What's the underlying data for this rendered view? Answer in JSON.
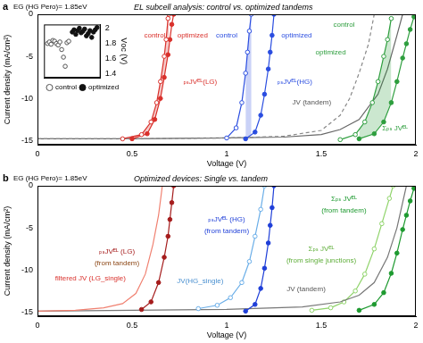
{
  "chart_data": [
    {
      "label": "a",
      "type": "line",
      "subtitle": "EG (HG Pero)= 1.85eV",
      "title": "EL subcell analysis: control vs. optimized tandems",
      "x_label": "Voltage (V)",
      "y_label": "Current density (mA/cm²)",
      "xlim": [
        0,
        2
      ],
      "xticks": [
        0,
        0.5,
        1,
        1.5,
        2
      ],
      "ylim": [
        -15.5,
        0
      ],
      "yticks": [
        -15,
        -10,
        -5,
        0
      ],
      "grid": false,
      "series": [
        {
          "color": "#d9302b",
          "marker": "open_circle",
          "line_style": "solid",
          "x": [
            0.45,
            0.55,
            0.6,
            0.63,
            0.65,
            0.67,
            0.68,
            0.69,
            0.695
          ],
          "values": [
            -14.8,
            -14.3,
            -12.8,
            -10.5,
            -8,
            -5,
            -3,
            -0.5,
            0
          ]
        },
        {
          "color": "#d9302b",
          "marker": "circle",
          "line_style": "solid",
          "x": [
            0.5,
            0.58,
            0.62,
            0.65,
            0.67,
            0.69,
            0.7,
            0.71,
            0.72
          ],
          "values": [
            -14.8,
            -14.2,
            -12.5,
            -10,
            -7.5,
            -4.8,
            -3,
            -1.2,
            0
          ]
        },
        {
          "color": "#2a4de0",
          "marker": "open_circle",
          "line_style": "solid",
          "x": [
            1.0,
            1.05,
            1.08,
            1.1,
            1.11,
            1.12,
            1.13
          ],
          "values": [
            -14.7,
            -13.5,
            -10.5,
            -7,
            -4.5,
            -2,
            0
          ]
        },
        {
          "color": "#2a4de0",
          "marker": "circle",
          "line_style": "solid",
          "x": [
            1.1,
            1.15,
            1.18,
            1.2,
            1.22,
            1.23,
            1.24,
            1.25
          ],
          "values": [
            -14.8,
            -14,
            -12,
            -9.5,
            -6.5,
            -4.5,
            -2.5,
            0
          ]
        },
        {
          "color": "#2e9e3e",
          "marker": "open_circle",
          "line_style": "solid",
          "x": [
            1.6,
            1.68,
            1.73,
            1.77,
            1.8,
            1.83,
            1.85,
            1.87
          ],
          "values": [
            -14.9,
            -14.3,
            -12.8,
            -10.5,
            -8,
            -5,
            -3,
            -0.5
          ]
        },
        {
          "color": "#2e9e3e",
          "marker": "circle",
          "line_style": "solid",
          "x": [
            1.7,
            1.78,
            1.83,
            1.87,
            1.9,
            1.93,
            1.95,
            1.97,
            1.99
          ],
          "values": [
            -14.8,
            -14.2,
            -12.8,
            -10.5,
            -8,
            -5.2,
            -3.5,
            -1.8,
            -0.3
          ]
        },
        {
          "color": "#888888",
          "marker": "none",
          "line_style": "dashed",
          "x": [
            0,
            0.5,
            1,
            1.3,
            1.5,
            1.6,
            1.65,
            1.7,
            1.75,
            1.78
          ],
          "values": [
            -14.8,
            -14.8,
            -14.7,
            -14.5,
            -13.8,
            -12,
            -10,
            -7,
            -3.5,
            0
          ]
        },
        {
          "color": "#666666",
          "marker": "none",
          "line_style": "solid",
          "x": [
            0,
            0.5,
            1,
            1.3,
            1.5,
            1.6,
            1.7,
            1.8,
            1.85,
            1.9,
            1.93
          ],
          "values": [
            -14.8,
            -14.8,
            -14.7,
            -14.6,
            -14.3,
            -13.7,
            -12.5,
            -9.5,
            -6.5,
            -2.5,
            0
          ]
        }
      ],
      "annotations": [
        {
          "text": "control",
          "x": 0.62,
          "y": -2.5,
          "color": "#d9302b"
        },
        {
          "text": "optimized",
          "x": 0.82,
          "y": -2.5,
          "color": "#d9302b"
        },
        {
          "text": "ₚₛJVᴱᴸ(LG)",
          "x": 0.86,
          "y": -8,
          "color": "#d9302b"
        },
        {
          "text": "control",
          "x": 1.0,
          "y": -2.5,
          "color": "#2a4de0"
        },
        {
          "text": "optimized",
          "x": 1.37,
          "y": -2.5,
          "color": "#2a4de0"
        },
        {
          "text": "ₚₛJVᴱᴸ(HG)",
          "x": 1.36,
          "y": -8,
          "color": "#2a4de0"
        },
        {
          "text": "JV (tandem)",
          "x": 1.45,
          "y": -10.5,
          "color": "#555555"
        },
        {
          "text": "control",
          "x": 1.62,
          "y": -1.2,
          "color": "#2e9e3e"
        },
        {
          "text": "optimized",
          "x": 1.55,
          "y": -4.5,
          "color": "#2e9e3e"
        },
        {
          "text": "Σₚₛ JVᴱᴸ",
          "x": 1.89,
          "y": -13.6,
          "color": "#2e9e3e"
        }
      ]
    },
    {
      "label": "b",
      "type": "line",
      "subtitle": "EG (HG Pero)= 1.85eV",
      "title": "Optimized devices: Single vs. tandem",
      "x_label": "Voltage (V)",
      "y_label": "Current density (mA/cm²)",
      "xlim": [
        0,
        2
      ],
      "xticks": [
        0,
        0.5,
        1,
        1.5,
        2
      ],
      "ylim": [
        -15.5,
        0
      ],
      "yticks": [
        -15,
        -10,
        -5,
        0
      ],
      "grid": false,
      "series": [
        {
          "color": "#f08070",
          "marker": "none",
          "line_style": "solid",
          "x": [
            0,
            0.2,
            0.35,
            0.45,
            0.52,
            0.57,
            0.61,
            0.64,
            0.66
          ],
          "values": [
            -14.9,
            -14.8,
            -14.5,
            -14,
            -12.8,
            -10.5,
            -7,
            -3.5,
            0
          ]
        },
        {
          "color": "#a51c1c",
          "marker": "circle",
          "line_style": "solid",
          "x": [
            0.55,
            0.6,
            0.64,
            0.67,
            0.69,
            0.7,
            0.71,
            0.72
          ],
          "values": [
            -14.7,
            -13.8,
            -11.5,
            -8.5,
            -6,
            -4,
            -2,
            0
          ]
        },
        {
          "color": "#6aaee8",
          "marker": "open_circle",
          "line_style": "solid",
          "x": [
            0.85,
            0.95,
            1.02,
            1.08,
            1.12,
            1.15,
            1.18,
            1.2
          ],
          "values": [
            -14.6,
            -14.2,
            -13.3,
            -11.5,
            -9,
            -6,
            -2.8,
            0
          ]
        },
        {
          "color": "#1f3fd8",
          "marker": "circle",
          "line_style": "solid",
          "x": [
            1.1,
            1.15,
            1.18,
            1.2,
            1.22,
            1.23,
            1.24,
            1.25
          ],
          "values": [
            -14.9,
            -14.1,
            -12.2,
            -9.8,
            -6.8,
            -4.7,
            -2.6,
            0
          ]
        },
        {
          "color": "#777777",
          "marker": "none",
          "line_style": "solid",
          "x": [
            0,
            0.5,
            1,
            1.4,
            1.6,
            1.7,
            1.78,
            1.85,
            1.9,
            1.95
          ],
          "values": [
            -14.9,
            -14.8,
            -14.7,
            -14.4,
            -13.8,
            -13,
            -11.5,
            -8.5,
            -5,
            0
          ]
        },
        {
          "color": "#8fd36a",
          "marker": "open_circle",
          "line_style": "solid",
          "x": [
            1.45,
            1.55,
            1.62,
            1.68,
            1.73,
            1.78,
            1.82,
            1.86,
            1.88
          ],
          "values": [
            -14.8,
            -14.5,
            -13.8,
            -12.5,
            -10.5,
            -7.5,
            -4.5,
            -1.5,
            0
          ]
        },
        {
          "color": "#1e9a30",
          "marker": "circle",
          "line_style": "solid",
          "x": [
            1.7,
            1.78,
            1.83,
            1.87,
            1.9,
            1.93,
            1.95,
            1.97,
            1.99
          ],
          "values": [
            -14.8,
            -14.1,
            -12.7,
            -10.4,
            -8,
            -5.2,
            -3.5,
            -1.8,
            -0.3
          ]
        }
      ],
      "annotations": [
        {
          "text": "ₚₛJVᴱᴸ (LG)",
          "x": 0.42,
          "y": -7.8,
          "color": "#a51c1c"
        },
        {
          "text": "(from tandem)",
          "x": 0.42,
          "y": -9.2,
          "color": "#8b4513"
        },
        {
          "text": "filtered JV (LG_single)",
          "x": 0.28,
          "y": -11,
          "color": "#d9302b"
        },
        {
          "text": "ₚₛJVᴱᴸ (HG)",
          "x": 1.0,
          "y": -4,
          "color": "#1f3fd8"
        },
        {
          "text": "(from tandem)",
          "x": 1.0,
          "y": -5.4,
          "color": "#1f3fd8"
        },
        {
          "text": "JV(HG_single)",
          "x": 0.86,
          "y": -11.3,
          "color": "#4a90d0"
        },
        {
          "text": "Σₚₛ JVᴱᴸ",
          "x": 1.62,
          "y": -1.6,
          "color": "#1e9a30"
        },
        {
          "text": "(from tandem)",
          "x": 1.62,
          "y": -3.0,
          "color": "#1e9a30"
        },
        {
          "text": "Σₚₛ JVᴱᴸ",
          "x": 1.5,
          "y": -7.5,
          "color": "#5fae3a"
        },
        {
          "text": "(from single junctions)",
          "x": 1.5,
          "y": -8.9,
          "color": "#5fae3a"
        },
        {
          "text": "JV (tandem)",
          "x": 1.42,
          "y": -12.3,
          "color": "#555555"
        }
      ]
    },
    {
      "type": "scatter",
      "y_label": "Vᴏᴄ (V)",
      "xlim": [
        0,
        32
      ],
      "xticks": [],
      "ylim": [
        1.35,
        2.05
      ],
      "yticks": [
        1.4,
        1.6,
        1.8,
        2
      ],
      "tick_labels": "y",
      "grid": false,
      "legend": "bottom",
      "series": [
        {
          "name": "control",
          "color": "#555555",
          "marker": "open_circle",
          "line_style": "none",
          "x": [
            2,
            3,
            4,
            5,
            6,
            7,
            8,
            9,
            10,
            11,
            12,
            13,
            14
          ],
          "values": [
            1.8,
            1.82,
            1.79,
            1.84,
            1.83,
            1.8,
            1.78,
            1.82,
            1.72,
            1.62,
            1.5,
            1.81,
            1.83
          ]
        },
        {
          "name": "optimized",
          "color": "#111111",
          "marker": "circle",
          "line_style": "none",
          "x": [
            16,
            17,
            18,
            19,
            20,
            21,
            22,
            23,
            24,
            25,
            26,
            27,
            28,
            29,
            30
          ],
          "values": [
            1.95,
            1.98,
            1.92,
            1.97,
            2.0,
            1.94,
            1.96,
            1.99,
            1.9,
            1.93,
            1.97,
            1.88,
            1.95,
            1.98,
            2.01
          ]
        }
      ]
    }
  ]
}
